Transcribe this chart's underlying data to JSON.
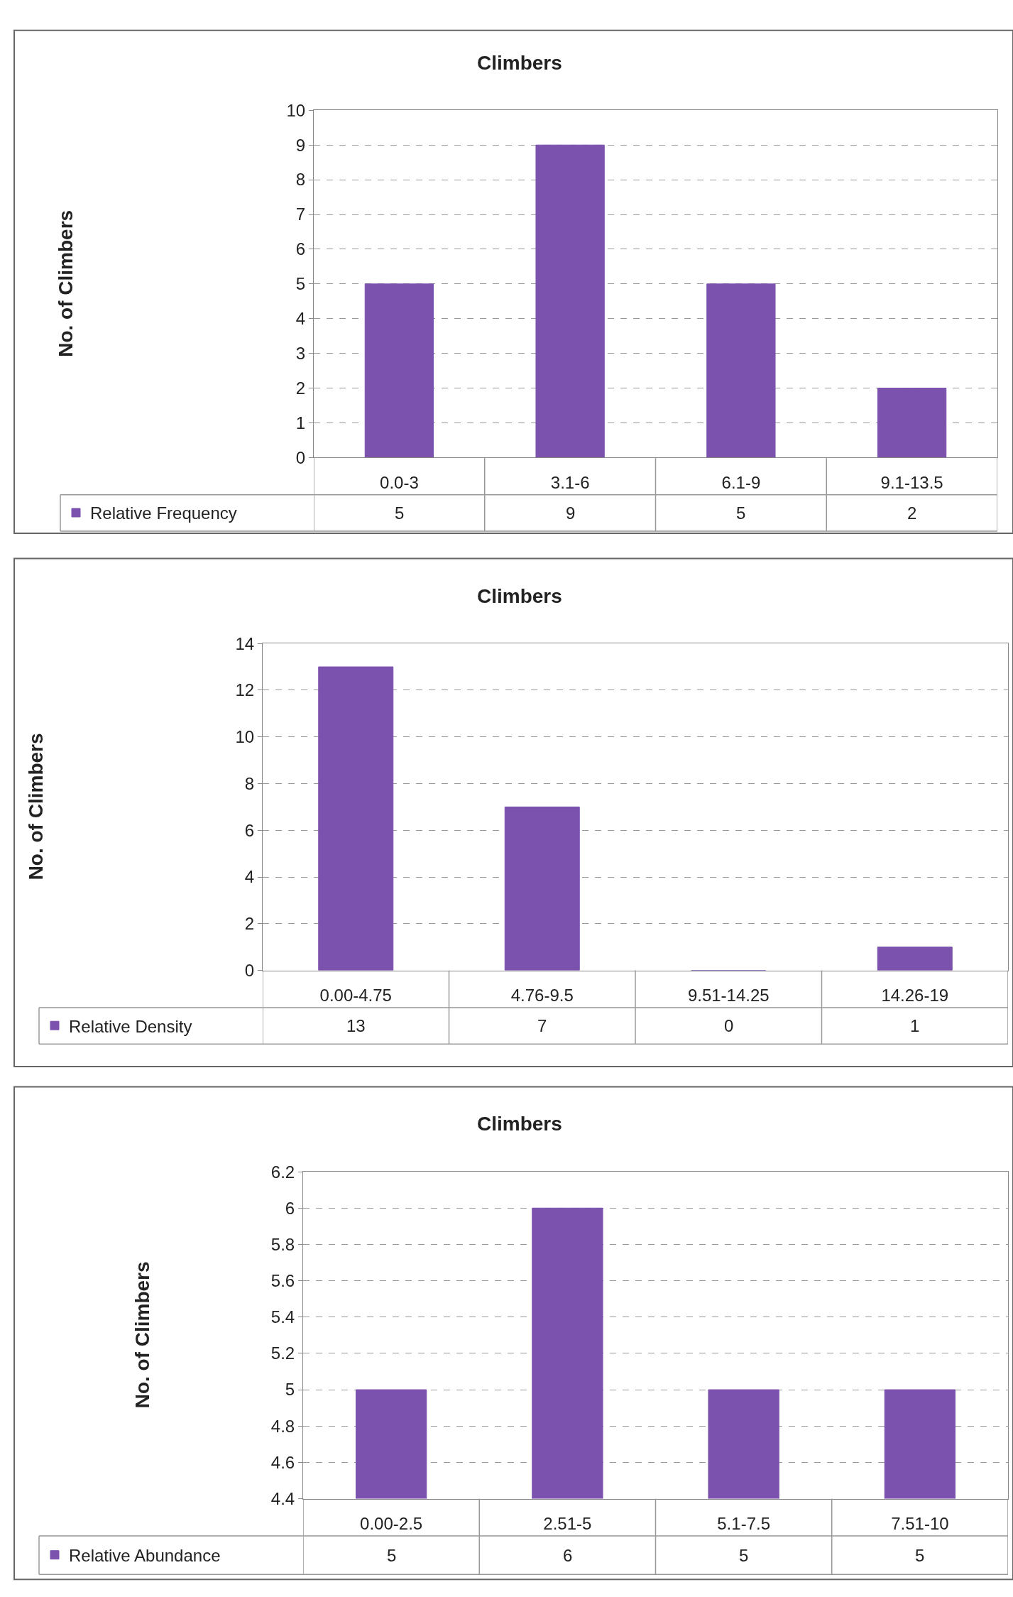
{
  "chart_data": [
    {
      "type": "bar",
      "title": "Climbers",
      "ylabel": "No. of Climbers",
      "categories": [
        "0.0-3",
        "3.1-6",
        "6.1-9",
        "9.1-13.5"
      ],
      "series": [
        {
          "name": "Relative Frequency",
          "color": "#7b52ad",
          "values": [
            5,
            9,
            5,
            2
          ]
        }
      ],
      "ylim": [
        0,
        10
      ],
      "yticks": [
        0,
        1,
        2,
        3,
        4,
        5,
        6,
        7,
        8,
        9,
        10
      ],
      "grid": "y",
      "data_labels": true,
      "legend": "bottom left"
    },
    {
      "type": "bar",
      "title": "Climbers",
      "ylabel": "No. of Climbers",
      "categories": [
        "0.00-4.75",
        "4.76-9.5",
        "9.51-14.25",
        "14.26-19"
      ],
      "series": [
        {
          "name": "Relative Density",
          "color": "#7b52ad",
          "values": [
            13,
            7,
            0,
            1
          ]
        }
      ],
      "ylim": [
        0,
        14
      ],
      "yticks": [
        0,
        2,
        4,
        6,
        8,
        10,
        12,
        14
      ],
      "grid": "y",
      "data_labels": true,
      "legend": "bottom left"
    },
    {
      "type": "bar",
      "title": "Climbers",
      "ylabel": "No. of Climbers",
      "categories": [
        "0.00-2.5",
        "2.51-5",
        "5.1-7.5",
        "7.51-10"
      ],
      "series": [
        {
          "name": "Relative Abundance",
          "color": "#7b52ad",
          "values": [
            5,
            6,
            5,
            5
          ]
        }
      ],
      "ylim": [
        4.4,
        6.2
      ],
      "yticks": [
        4.4,
        4.6,
        4.8,
        5,
        5.2,
        5.4,
        5.6,
        5.8,
        6,
        6.2
      ],
      "grid": "y",
      "data_labels": true,
      "legend": "bottom left"
    }
  ]
}
